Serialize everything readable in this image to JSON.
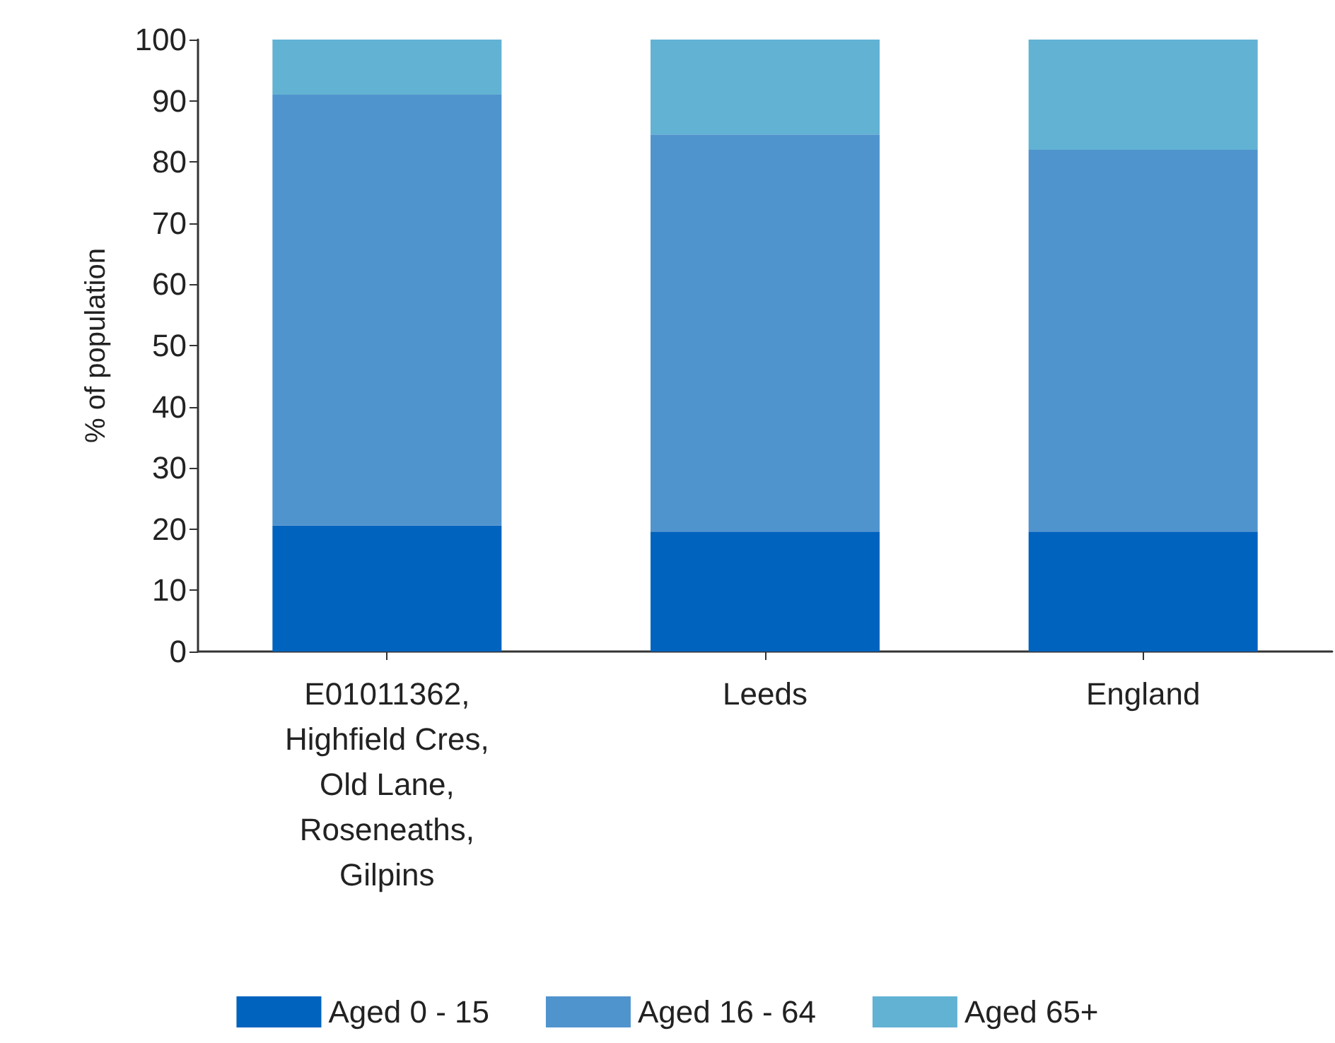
{
  "chart_data": {
    "type": "bar",
    "stacked": true,
    "ylabel": "% of population",
    "categories": [
      "E01011362,\nHighfield Cres,\nOld Lane,\nRoseneaths,\nGilpins",
      "Leeds",
      "England"
    ],
    "series": [
      {
        "name": "Aged 0 - 15",
        "color": "#0063be",
        "values": [
          20.6,
          19.6,
          19.6
        ]
      },
      {
        "name": "Aged 16 - 64",
        "color": "#5094ce",
        "values": [
          70.4,
          64.9,
          62.4
        ]
      },
      {
        "name": "Aged 65+",
        "color": "#62b2d3",
        "values": [
          9.0,
          15.5,
          18.0
        ]
      }
    ],
    "ylim": [
      0,
      100
    ],
    "yticks": [
      0,
      10,
      20,
      30,
      40,
      50,
      60,
      70,
      80,
      90,
      100
    ],
    "grid": false,
    "legend": "bottom"
  }
}
